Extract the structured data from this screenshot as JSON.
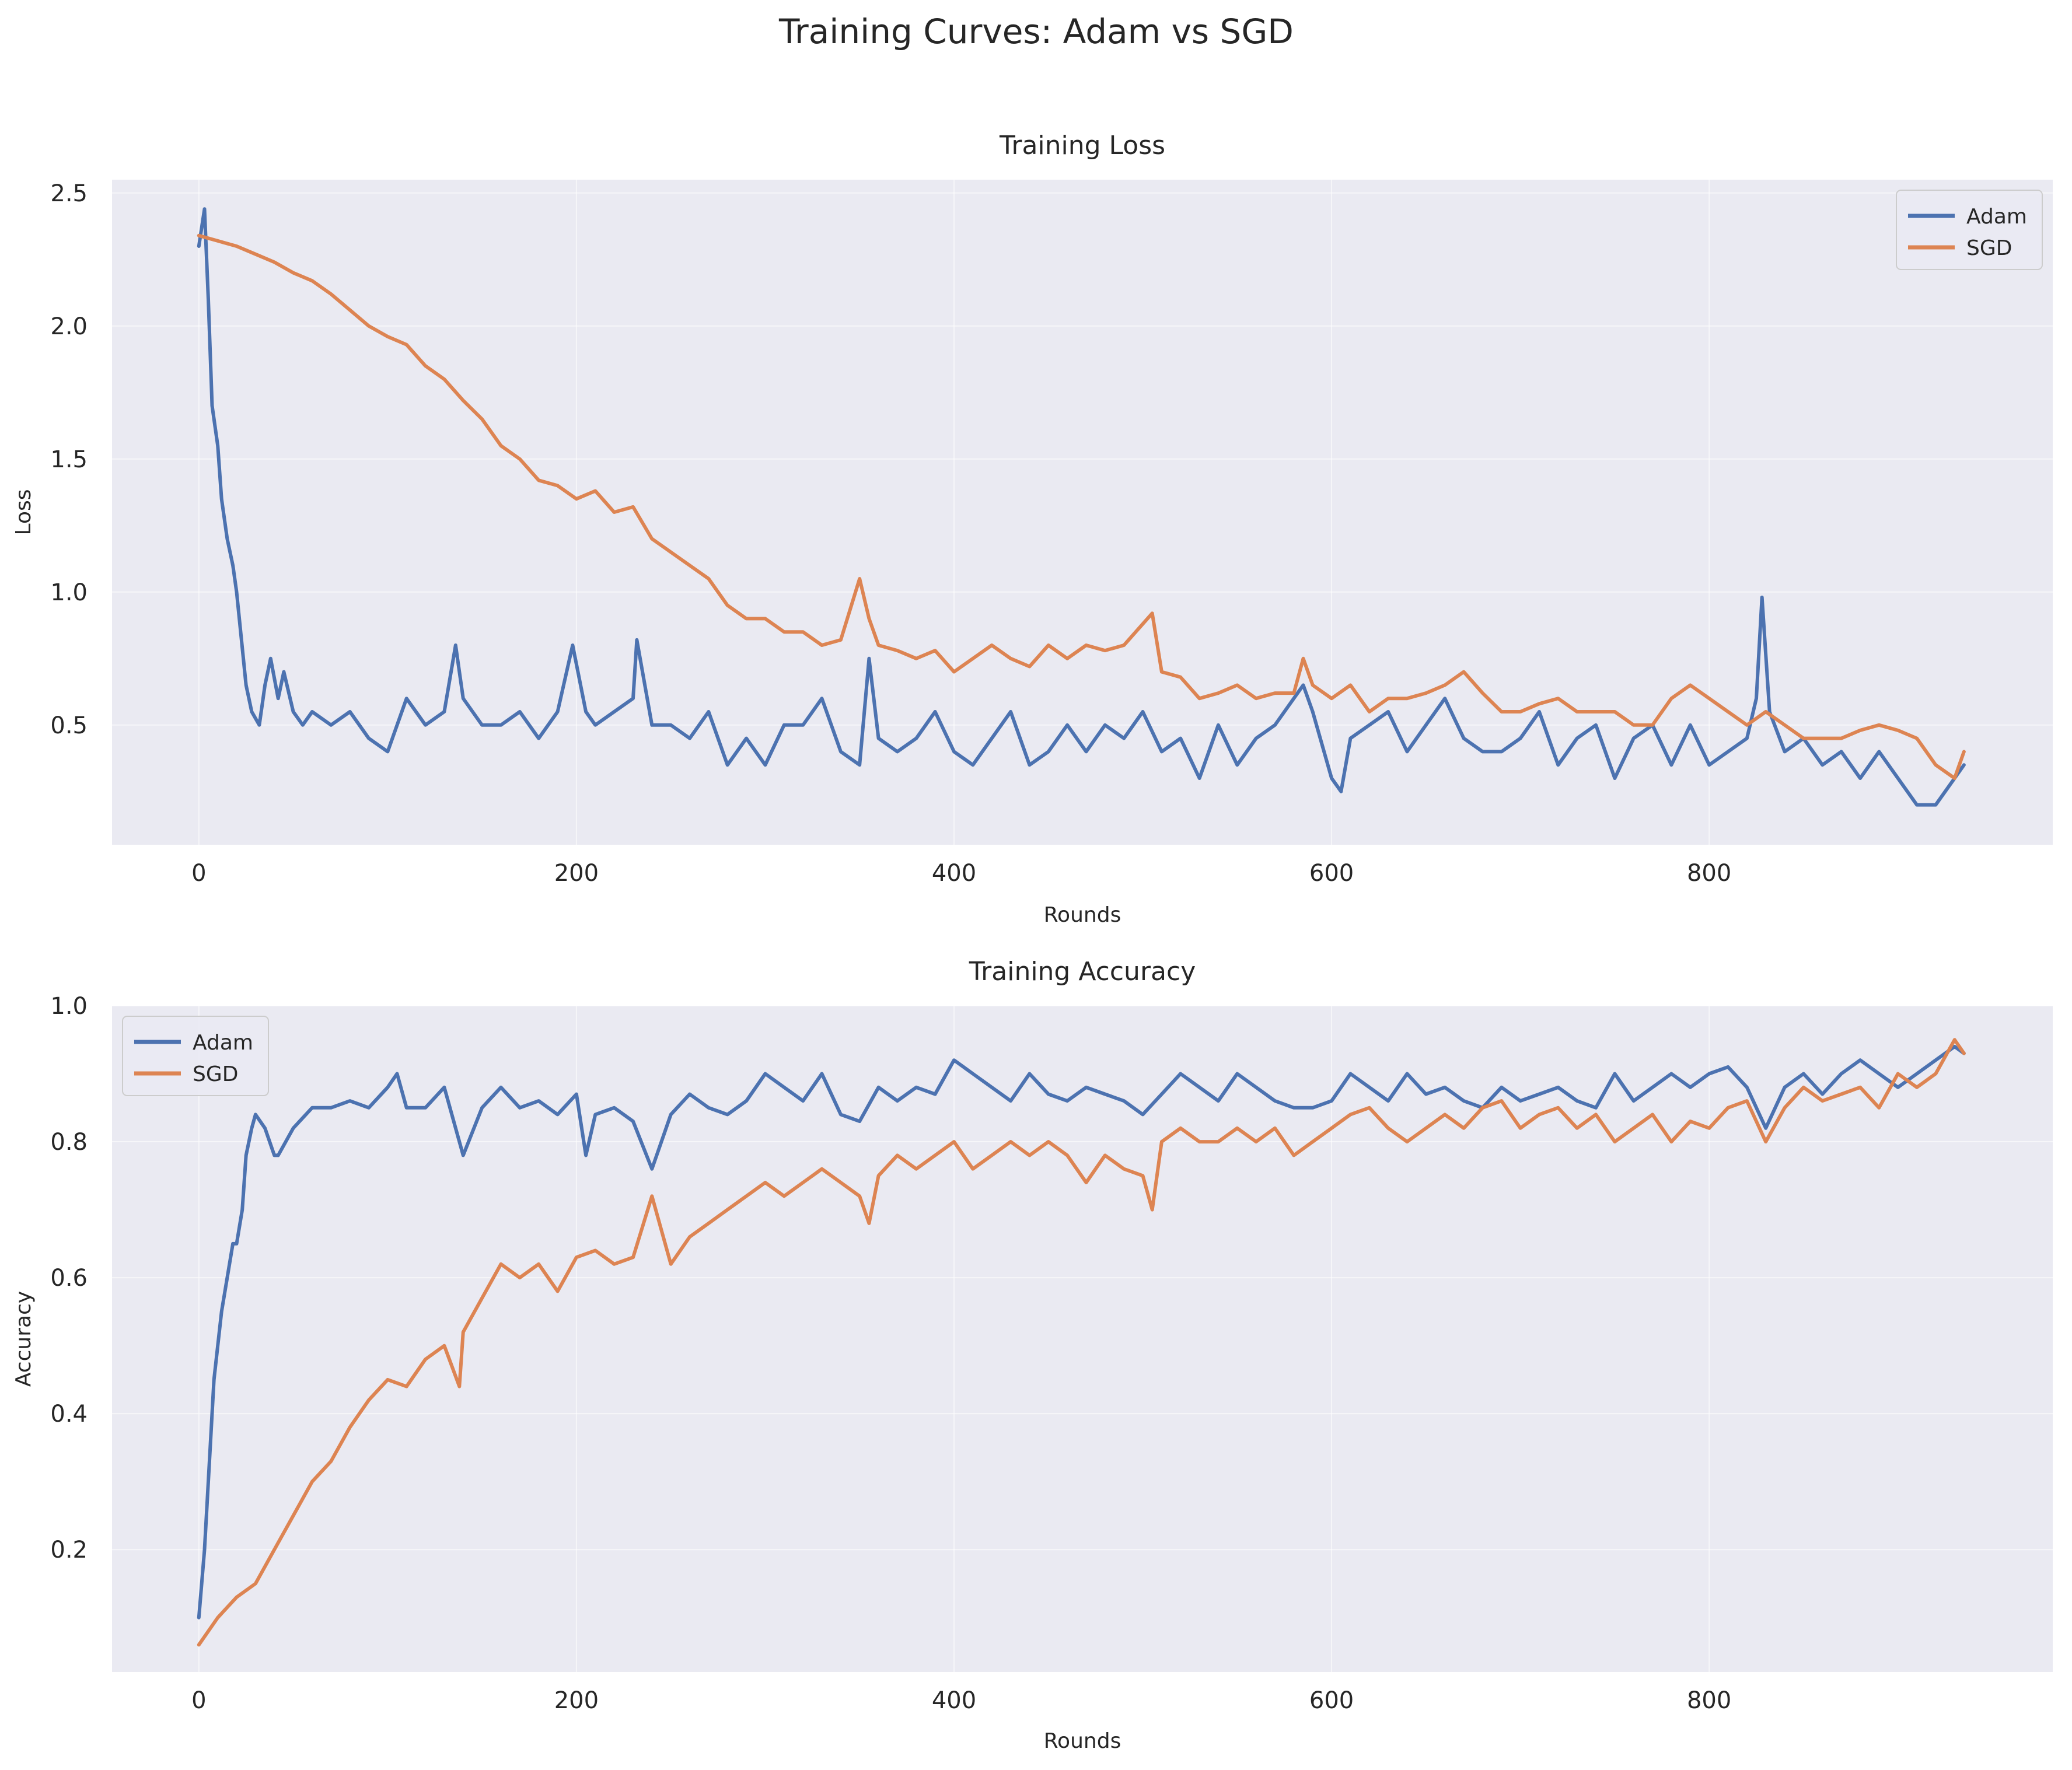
{
  "figure": {
    "title": "Training Curves: Adam vs SGD"
  },
  "colors": {
    "Adam": "#4c72b0",
    "SGD": "#dd8452",
    "panel_bg": "#eaeaf2"
  },
  "chart_data": [
    {
      "type": "line",
      "title": "Training Loss",
      "xlabel": "Rounds",
      "ylabel": "Loss",
      "xlim": [
        -46,
        982
      ],
      "ylim": [
        0.05,
        2.55
      ],
      "xticks": [
        0,
        200,
        400,
        600,
        800
      ],
      "yticks": [
        0.5,
        1.0,
        1.5,
        2.0,
        2.5
      ],
      "grid": true,
      "legend": "upper right",
      "series": [
        {
          "name": "Adam",
          "color": "#4c72b0",
          "x": [
            0,
            3,
            5,
            7,
            10,
            12,
            15,
            18,
            20,
            25,
            28,
            32,
            35,
            38,
            42,
            45,
            50,
            55,
            60,
            70,
            80,
            90,
            100,
            110,
            120,
            130,
            136,
            140,
            150,
            160,
            170,
            180,
            190,
            198,
            205,
            210,
            220,
            230,
            232,
            240,
            250,
            260,
            270,
            280,
            290,
            300,
            310,
            320,
            330,
            340,
            350,
            355,
            360,
            370,
            380,
            390,
            400,
            410,
            420,
            430,
            440,
            450,
            460,
            470,
            480,
            490,
            500,
            510,
            520,
            530,
            540,
            550,
            560,
            570,
            585,
            590,
            600,
            605,
            610,
            620,
            630,
            640,
            650,
            660,
            670,
            680,
            690,
            700,
            710,
            720,
            730,
            740,
            750,
            760,
            770,
            780,
            790,
            800,
            810,
            820,
            825,
            828,
            832,
            840,
            850,
            860,
            870,
            880,
            890,
            900,
            910,
            920,
            930,
            935
          ],
          "y": [
            2.3,
            2.44,
            2.1,
            1.7,
            1.55,
            1.35,
            1.2,
            1.1,
            1.0,
            0.65,
            0.55,
            0.5,
            0.65,
            0.75,
            0.6,
            0.7,
            0.55,
            0.5,
            0.55,
            0.5,
            0.55,
            0.45,
            0.4,
            0.6,
            0.5,
            0.55,
            0.8,
            0.6,
            0.5,
            0.5,
            0.55,
            0.45,
            0.55,
            0.8,
            0.55,
            0.5,
            0.55,
            0.6,
            0.82,
            0.5,
            0.5,
            0.45,
            0.55,
            0.35,
            0.45,
            0.35,
            0.5,
            0.5,
            0.6,
            0.4,
            0.35,
            0.75,
            0.45,
            0.4,
            0.45,
            0.55,
            0.4,
            0.35,
            0.45,
            0.55,
            0.35,
            0.4,
            0.5,
            0.4,
            0.5,
            0.45,
            0.55,
            0.4,
            0.45,
            0.3,
            0.5,
            0.35,
            0.45,
            0.5,
            0.65,
            0.55,
            0.3,
            0.25,
            0.45,
            0.5,
            0.55,
            0.4,
            0.5,
            0.6,
            0.45,
            0.4,
            0.4,
            0.45,
            0.55,
            0.35,
            0.45,
            0.5,
            0.3,
            0.45,
            0.5,
            0.35,
            0.5,
            0.35,
            0.4,
            0.45,
            0.6,
            0.98,
            0.55,
            0.4,
            0.45,
            0.35,
            0.4,
            0.3,
            0.4,
            0.3,
            0.2,
            0.2,
            0.3,
            0.35
          ]
        },
        {
          "name": "SGD",
          "color": "#dd8452",
          "x": [
            0,
            10,
            20,
            30,
            40,
            50,
            60,
            70,
            80,
            90,
            100,
            110,
            120,
            130,
            140,
            150,
            160,
            170,
            180,
            190,
            200,
            210,
            220,
            230,
            240,
            250,
            260,
            270,
            280,
            290,
            300,
            310,
            320,
            330,
            340,
            350,
            355,
            360,
            370,
            380,
            390,
            400,
            410,
            420,
            430,
            440,
            450,
            460,
            470,
            480,
            490,
            500,
            505,
            510,
            520,
            530,
            540,
            550,
            560,
            570,
            580,
            585,
            590,
            600,
            610,
            620,
            630,
            640,
            650,
            660,
            670,
            680,
            690,
            700,
            710,
            720,
            730,
            740,
            750,
            760,
            770,
            780,
            790,
            800,
            810,
            820,
            830,
            840,
            850,
            860,
            870,
            880,
            890,
            900,
            910,
            920,
            930,
            935
          ],
          "y": [
            2.34,
            2.32,
            2.3,
            2.27,
            2.24,
            2.2,
            2.17,
            2.12,
            2.06,
            2.0,
            1.96,
            1.93,
            1.85,
            1.8,
            1.72,
            1.65,
            1.55,
            1.5,
            1.42,
            1.4,
            1.35,
            1.38,
            1.3,
            1.32,
            1.2,
            1.15,
            1.1,
            1.05,
            0.95,
            0.9,
            0.9,
            0.85,
            0.85,
            0.8,
            0.82,
            1.05,
            0.9,
            0.8,
            0.78,
            0.75,
            0.78,
            0.7,
            0.75,
            0.8,
            0.75,
            0.72,
            0.8,
            0.75,
            0.8,
            0.78,
            0.8,
            0.88,
            0.92,
            0.7,
            0.68,
            0.6,
            0.62,
            0.65,
            0.6,
            0.62,
            0.62,
            0.75,
            0.65,
            0.6,
            0.65,
            0.55,
            0.6,
            0.6,
            0.62,
            0.65,
            0.7,
            0.62,
            0.55,
            0.55,
            0.58,
            0.6,
            0.55,
            0.55,
            0.55,
            0.5,
            0.5,
            0.6,
            0.65,
            0.6,
            0.55,
            0.5,
            0.55,
            0.5,
            0.45,
            0.45,
            0.45,
            0.48,
            0.5,
            0.48,
            0.45,
            0.35,
            0.3,
            0.4
          ]
        }
      ]
    },
    {
      "type": "line",
      "title": "Training Accuracy",
      "xlabel": "Rounds",
      "ylabel": "Accuracy",
      "xlim": [
        -46,
        982
      ],
      "ylim": [
        0.02,
        1.0
      ],
      "xticks": [
        0,
        200,
        400,
        600,
        800
      ],
      "yticks": [
        0.2,
        0.4,
        0.6,
        0.8,
        1.0
      ],
      "grid": true,
      "legend": "upper left",
      "series": [
        {
          "name": "Adam",
          "color": "#4c72b0",
          "x": [
            0,
            3,
            5,
            8,
            10,
            12,
            15,
            18,
            20,
            23,
            25,
            28,
            30,
            35,
            40,
            42,
            50,
            60,
            70,
            80,
            90,
            100,
            105,
            110,
            120,
            130,
            140,
            150,
            160,
            170,
            180,
            190,
            200,
            205,
            210,
            220,
            230,
            240,
            250,
            260,
            270,
            280,
            290,
            300,
            310,
            320,
            330,
            340,
            350,
            360,
            370,
            380,
            390,
            400,
            410,
            420,
            430,
            440,
            450,
            460,
            470,
            480,
            490,
            500,
            510,
            520,
            530,
            540,
            550,
            560,
            570,
            580,
            590,
            600,
            610,
            620,
            630,
            640,
            650,
            660,
            670,
            680,
            690,
            700,
            710,
            720,
            730,
            740,
            750,
            760,
            770,
            780,
            790,
            800,
            810,
            820,
            830,
            840,
            850,
            860,
            870,
            880,
            890,
            900,
            910,
            920,
            930,
            935
          ],
          "y": [
            0.1,
            0.2,
            0.3,
            0.45,
            0.5,
            0.55,
            0.6,
            0.65,
            0.65,
            0.7,
            0.78,
            0.82,
            0.84,
            0.82,
            0.78,
            0.78,
            0.82,
            0.85,
            0.85,
            0.86,
            0.85,
            0.88,
            0.9,
            0.85,
            0.85,
            0.88,
            0.78,
            0.85,
            0.88,
            0.85,
            0.86,
            0.84,
            0.87,
            0.78,
            0.84,
            0.85,
            0.83,
            0.76,
            0.84,
            0.87,
            0.85,
            0.84,
            0.86,
            0.9,
            0.88,
            0.86,
            0.9,
            0.84,
            0.83,
            0.88,
            0.86,
            0.88,
            0.87,
            0.92,
            0.9,
            0.88,
            0.86,
            0.9,
            0.87,
            0.86,
            0.88,
            0.87,
            0.86,
            0.84,
            0.87,
            0.9,
            0.88,
            0.86,
            0.9,
            0.88,
            0.86,
            0.85,
            0.85,
            0.86,
            0.9,
            0.88,
            0.86,
            0.9,
            0.87,
            0.88,
            0.86,
            0.85,
            0.88,
            0.86,
            0.87,
            0.88,
            0.86,
            0.85,
            0.9,
            0.86,
            0.88,
            0.9,
            0.88,
            0.9,
            0.91,
            0.88,
            0.82,
            0.88,
            0.9,
            0.87,
            0.9,
            0.92,
            0.9,
            0.88,
            0.9,
            0.92,
            0.94,
            0.93
          ]
        },
        {
          "name": "SGD",
          "color": "#dd8452",
          "x": [
            0,
            10,
            20,
            30,
            40,
            50,
            60,
            70,
            80,
            90,
            100,
            110,
            120,
            130,
            138,
            140,
            150,
            160,
            170,
            180,
            190,
            200,
            210,
            220,
            230,
            240,
            250,
            260,
            270,
            280,
            290,
            300,
            310,
            320,
            330,
            340,
            350,
            355,
            360,
            370,
            380,
            390,
            400,
            410,
            420,
            430,
            440,
            450,
            460,
            470,
            480,
            490,
            500,
            505,
            510,
            520,
            530,
            540,
            550,
            560,
            570,
            580,
            590,
            600,
            610,
            620,
            630,
            640,
            650,
            660,
            670,
            680,
            690,
            700,
            710,
            720,
            730,
            740,
            750,
            760,
            770,
            780,
            790,
            800,
            810,
            820,
            830,
            840,
            850,
            860,
            870,
            880,
            890,
            900,
            910,
            920,
            930,
            935
          ],
          "y": [
            0.06,
            0.1,
            0.13,
            0.15,
            0.2,
            0.25,
            0.3,
            0.33,
            0.38,
            0.42,
            0.45,
            0.44,
            0.48,
            0.5,
            0.44,
            0.52,
            0.57,
            0.62,
            0.6,
            0.62,
            0.58,
            0.63,
            0.64,
            0.62,
            0.63,
            0.72,
            0.62,
            0.66,
            0.68,
            0.7,
            0.72,
            0.74,
            0.72,
            0.74,
            0.76,
            0.74,
            0.72,
            0.68,
            0.75,
            0.78,
            0.76,
            0.78,
            0.8,
            0.76,
            0.78,
            0.8,
            0.78,
            0.8,
            0.78,
            0.74,
            0.78,
            0.76,
            0.75,
            0.7,
            0.8,
            0.82,
            0.8,
            0.8,
            0.82,
            0.8,
            0.82,
            0.78,
            0.8,
            0.82,
            0.84,
            0.85,
            0.82,
            0.8,
            0.82,
            0.84,
            0.82,
            0.85,
            0.86,
            0.82,
            0.84,
            0.85,
            0.82,
            0.84,
            0.8,
            0.82,
            0.84,
            0.8,
            0.83,
            0.82,
            0.85,
            0.86,
            0.8,
            0.85,
            0.88,
            0.86,
            0.87,
            0.88,
            0.85,
            0.9,
            0.88,
            0.9,
            0.95,
            0.93
          ]
        }
      ]
    }
  ]
}
